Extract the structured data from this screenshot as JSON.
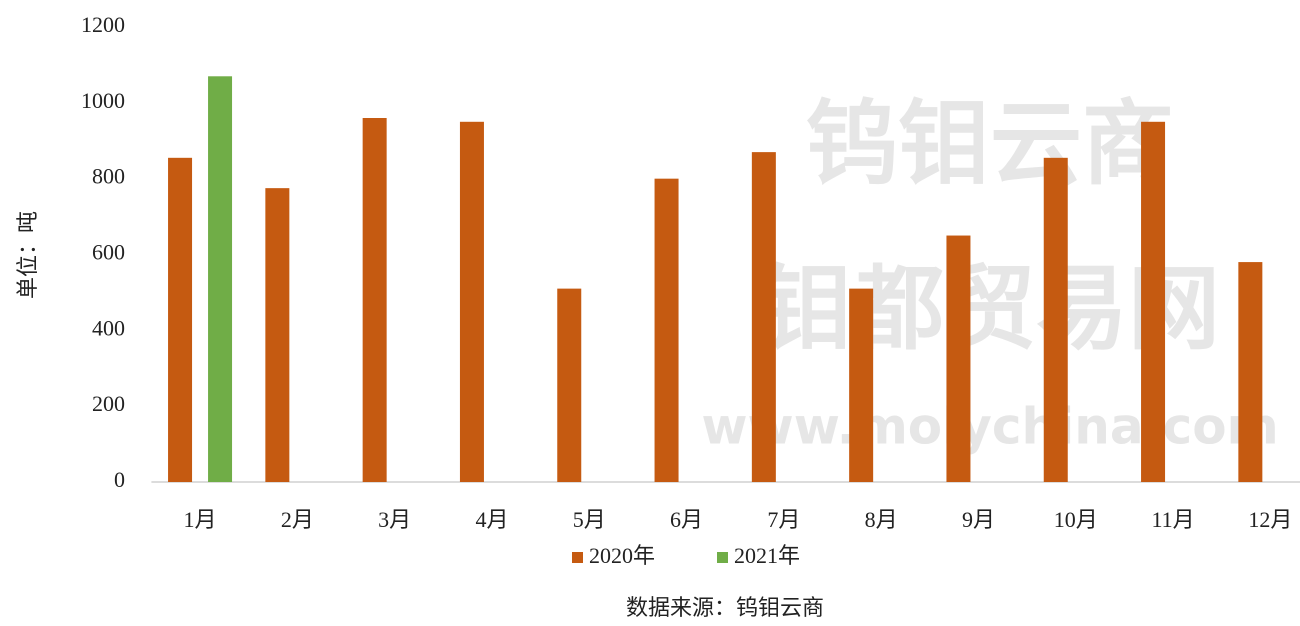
{
  "chart_data": {
    "type": "bar",
    "y_label": "单位：吨",
    "source": "数据来源：钨钼云商",
    "watermark": [
      "钨钼云商",
      "钼都贸易网",
      "www.molychina.com"
    ],
    "categories": [
      "1月",
      "2月",
      "3月",
      "4月",
      "5月",
      "6月",
      "7月",
      "8月",
      "9月",
      "10月",
      "11月",
      "12月"
    ],
    "series": [
      {
        "name": "2020年",
        "color": "#c55a11",
        "values": [
          855,
          775,
          960,
          950,
          510,
          800,
          870,
          510,
          650,
          855,
          950,
          580
        ]
      },
      {
        "name": "2021年",
        "color": "#70ad47",
        "values": [
          1070,
          null,
          null,
          null,
          null,
          null,
          null,
          null,
          null,
          null,
          null,
          null
        ]
      }
    ],
    "ylim": [
      0,
      1200
    ],
    "yticks": [
      0,
      200,
      400,
      600,
      800,
      1000,
      1200
    ],
    "grid": false,
    "legend": "bottom"
  }
}
